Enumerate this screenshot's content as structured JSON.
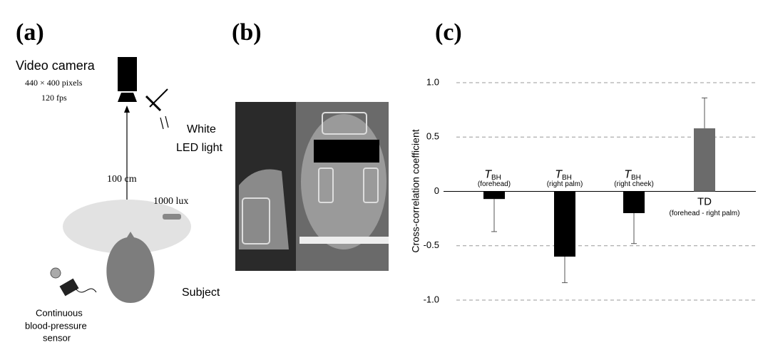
{
  "panels": {
    "a": {
      "label": "(a)",
      "camera": "Video camera",
      "resolution": "440 × 400 pixels",
      "fps": "120 fps",
      "light": [
        "White",
        "LED light"
      ],
      "distance": "100 cm",
      "illuminance": "1000 lux",
      "subject": "Subject",
      "sensor": [
        "Continuous",
        "blood-pressure",
        "sensor"
      ]
    },
    "b": {
      "label": "(b)"
    },
    "c": {
      "label": "(c)"
    }
  },
  "chart_data": {
    "type": "bar",
    "ylabel": "Cross-correlation coefficient",
    "categories": [
      {
        "main": "T",
        "sub": "BH",
        "note": "(forehead)"
      },
      {
        "main": "T",
        "sub": "BH",
        "note": "(right palm)"
      },
      {
        "main": "T",
        "sub": "BH",
        "note": "(right cheek)"
      },
      {
        "main": "TD",
        "note": "(forehead - right palm)"
      }
    ],
    "values": [
      -0.07,
      -0.6,
      -0.2,
      0.58
    ],
    "errors": [
      0.3,
      0.24,
      0.28,
      0.28
    ],
    "colors": [
      "#000000",
      "#000000",
      "#000000",
      "#6b6b6b"
    ],
    "ylim": [
      -1,
      1
    ],
    "yticks": [
      {
        "value": 1,
        "label": "1.0"
      },
      0.5,
      0,
      -0.5,
      {
        "value": -1,
        "label": "-1.0"
      }
    ],
    "grid": "dashed"
  }
}
